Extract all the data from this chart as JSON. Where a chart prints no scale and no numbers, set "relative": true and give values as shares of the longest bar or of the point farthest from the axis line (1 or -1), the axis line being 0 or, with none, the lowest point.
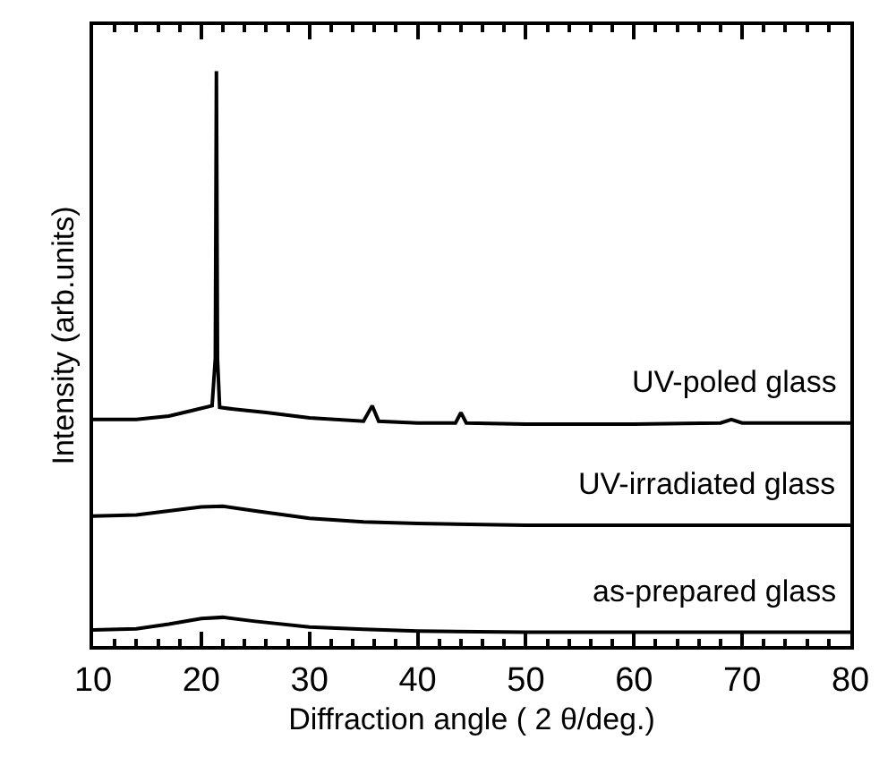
{
  "chart_data": {
    "type": "line",
    "xlabel": "Diffraction angle ( 2 θ/deg.)",
    "ylabel": "Intensity (arb.units)",
    "relative": true,
    "xlim": [
      10,
      80
    ],
    "xticks": [
      10,
      20,
      30,
      40,
      50,
      60,
      70,
      80
    ],
    "series": [
      {
        "name": "UV-poled glass",
        "color": "#000000",
        "x": [
          10,
          14,
          17,
          19,
          21,
          21.3,
          21.4,
          21.5,
          21.7,
          23,
          26,
          30,
          35,
          35.8,
          36.4,
          40,
          43.5,
          44,
          44.5,
          50,
          60,
          68,
          69,
          70,
          80
        ],
        "values": [
          0.394,
          0.394,
          0.4,
          0.409,
          0.418,
          0.5,
          1,
          0.5,
          0.415,
          0.412,
          0.406,
          0.397,
          0.391,
          0.418,
          0.391,
          0.388,
          0.388,
          0.406,
          0.388,
          0.386,
          0.386,
          0.388,
          0.394,
          0.388,
          0.388
        ]
      },
      {
        "name": "UV-irradiated glass",
        "color": "#000000",
        "x": [
          10,
          14,
          17,
          20,
          22,
          25,
          30,
          35,
          40,
          50,
          60,
          70,
          80
        ],
        "values": [
          0.226,
          0.228,
          0.235,
          0.242,
          0.243,
          0.235,
          0.222,
          0.216,
          0.213,
          0.21,
          0.21,
          0.21,
          0.21
        ]
      },
      {
        "name": "as-prepared glass",
        "color": "#000000",
        "x": [
          10,
          14,
          17,
          20,
          22,
          25,
          30,
          35,
          40,
          50,
          60,
          70,
          80
        ],
        "values": [
          0.028,
          0.03,
          0.038,
          0.048,
          0.05,
          0.043,
          0.033,
          0.029,
          0.026,
          0.024,
          0.024,
          0.024,
          0.024
        ]
      }
    ]
  }
}
